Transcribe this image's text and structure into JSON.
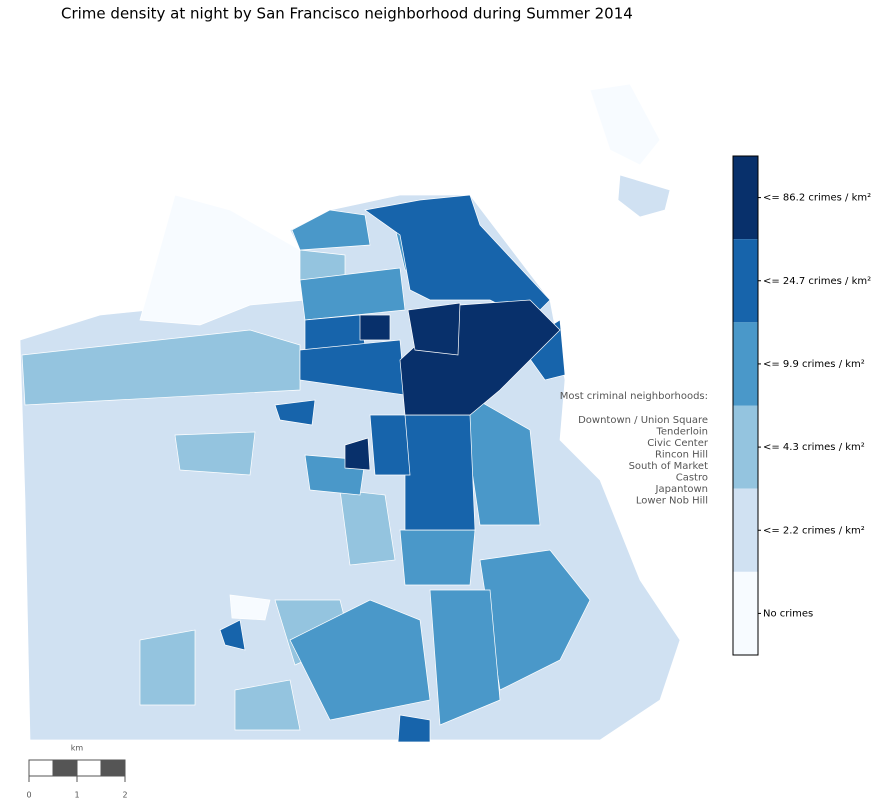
{
  "title": "Crime density at night by San Francisco neighborhood during Summer 2014",
  "legend": {
    "bins": [
      {
        "label": "<= 86.2 crimes / km²",
        "color": "#08306b"
      },
      {
        "label": "<= 24.7 crimes / km²",
        "color": "#1764ab"
      },
      {
        "label": "<= 9.9 crimes / km²",
        "color": "#4a98c9"
      },
      {
        "label": "<= 4.3 crimes / km²",
        "color": "#94c4df"
      },
      {
        "label": "<= 2.2 crimes / km²",
        "color": "#d0e1f2"
      },
      {
        "label": "No crimes",
        "color": "#f7fbff"
      }
    ]
  },
  "annotation": {
    "heading": "Most criminal neighborhoods:",
    "items": [
      "Downtown / Union Square",
      "Tenderloin",
      "Civic Center",
      "Rincon Hill",
      "South of Market",
      "Castro",
      "Japantown",
      "Lower Nob Hill"
    ]
  },
  "scale_bar": {
    "unit": "km",
    "ticks": [
      0,
      1,
      2
    ]
  }
}
